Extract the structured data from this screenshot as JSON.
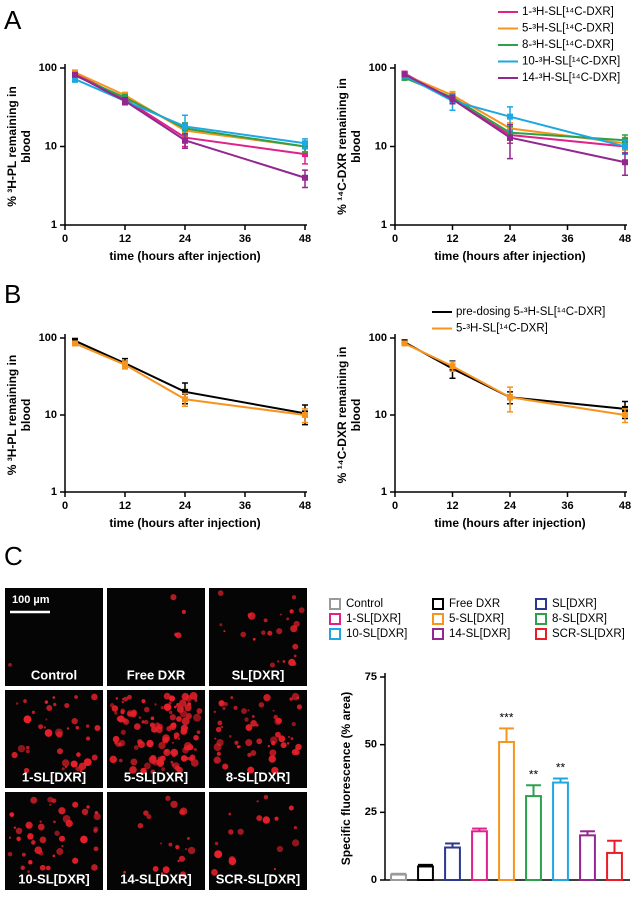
{
  "panel_labels": [
    "A",
    "B",
    "C"
  ],
  "images": {
    "scale_bar": "100 µm",
    "labels": [
      "Control",
      "Free DXR",
      "SL[DXR]",
      "1-SL[DXR]",
      "5-SL[DXR]",
      "8-SL[DXR]",
      "10-SL[DXR]",
      "14-SL[DXR]",
      "SCR-SL[DXR]"
    ]
  },
  "chart_data": [
    {
      "type": "line",
      "log_y": true,
      "legend": false,
      "xlabel": "time (hours after injection)",
      "ylabel": [
        "% ³H-PL remaining in",
        "blood"
      ],
      "x": [
        2,
        12,
        24,
        48
      ],
      "xlim": [
        0,
        48
      ],
      "xticks": [
        0,
        12,
        24,
        36,
        48
      ],
      "ylim": [
        1,
        100
      ],
      "yticks": [
        1,
        10,
        100
      ],
      "series": [
        {
          "name": "1-³H-SL[¹⁴C-DXR]",
          "color": "#e0218a",
          "values": [
            85,
            40,
            13,
            8
          ],
          "errors": [
            5,
            4,
            3,
            2
          ]
        },
        {
          "name": "5-³H-SL[¹⁴C-DXR]",
          "color": "#f7941d",
          "values": [
            88,
            45,
            16,
            10
          ],
          "errors": [
            5,
            4,
            3,
            1.5
          ]
        },
        {
          "name": "8-³H-SL[¹⁴C-DXR]",
          "color": "#2ca04c",
          "values": [
            80,
            42,
            17,
            10
          ],
          "errors": [
            5,
            4,
            3,
            1.5
          ]
        },
        {
          "name": "10-³H-SL[¹⁴C-DXR]",
          "color": "#1ea7e1",
          "values": [
            72,
            38,
            18,
            11
          ],
          "errors": [
            6,
            4,
            7,
            1.5
          ]
        },
        {
          "name": "14-³H-SL[¹⁴C-DXR]",
          "color": "#92278f",
          "values": [
            82,
            38,
            12,
            4
          ],
          "errors": [
            5,
            4,
            2.5,
            1
          ]
        }
      ]
    },
    {
      "type": "line",
      "log_y": true,
      "legend": "top-right",
      "xlabel": "time (hours after injection)",
      "ylabel": [
        "% ¹⁴C-DXR remaining in",
        "blood"
      ],
      "x": [
        2,
        12,
        24,
        48
      ],
      "xlim": [
        0,
        48
      ],
      "xticks": [
        0,
        12,
        24,
        36,
        48
      ],
      "ylim": [
        1,
        100
      ],
      "yticks": [
        1,
        10,
        100
      ],
      "series": [
        {
          "name": "1-³H-SL[¹⁴C-DXR]",
          "color": "#e0218a",
          "values": [
            85,
            40,
            14,
            10
          ],
          "errors": [
            5,
            5,
            3,
            2
          ]
        },
        {
          "name": "5-³H-SL[¹⁴C-DXR]",
          "color": "#f7941d",
          "values": [
            82,
            45,
            17,
            11
          ],
          "errors": [
            5,
            5,
            3,
            2
          ]
        },
        {
          "name": "8-³H-SL[¹⁴C-DXR]",
          "color": "#2ca04c",
          "values": [
            75,
            42,
            15,
            12
          ],
          "errors": [
            5,
            5,
            3,
            2
          ]
        },
        {
          "name": "10-³H-SL[¹⁴C-DXR]",
          "color": "#1ea7e1",
          "values": [
            80,
            38,
            24,
            10
          ],
          "errors": [
            5,
            9,
            8,
            2
          ]
        },
        {
          "name": "14-³H-SL[¹⁴C-DXR]",
          "color": "#92278f",
          "values": [
            83,
            40,
            13,
            6.3
          ],
          "errors": [
            5,
            5,
            6,
            2
          ]
        }
      ]
    },
    {
      "type": "line",
      "log_y": true,
      "legend": false,
      "xlabel": "time (hours after injection)",
      "ylabel": [
        "% ³H-PL remaining in",
        "blood"
      ],
      "x": [
        2,
        12,
        24,
        48
      ],
      "xlim": [
        0,
        48
      ],
      "xticks": [
        0,
        12,
        24,
        36,
        48
      ],
      "ylim": [
        1,
        100
      ],
      "yticks": [
        1,
        10,
        100
      ],
      "series": [
        {
          "name": "pre-dosing 5-³H-SL[¹⁴C-DXR]",
          "color": "#000000",
          "values": [
            92,
            47,
            20,
            10.5
          ],
          "errors": [
            6,
            7,
            6,
            3
          ]
        },
        {
          "name": "5-³H-SL[¹⁴C-DXR]",
          "color": "#f7941d",
          "values": [
            85,
            45,
            16,
            10
          ],
          "errors": [
            5,
            5,
            3,
            2
          ]
        }
      ]
    },
    {
      "type": "line",
      "log_y": true,
      "legend": "top-right",
      "xlabel": "time (hours after injection)",
      "ylabel": [
        "% ¹⁴C-DXR remaining in",
        "blood"
      ],
      "x": [
        2,
        12,
        24,
        48
      ],
      "xlim": [
        0,
        48
      ],
      "xticks": [
        0,
        12,
        24,
        36,
        48
      ],
      "ylim": [
        1,
        100
      ],
      "yticks": [
        1,
        10,
        100
      ],
      "series": [
        {
          "name": "pre-dosing 5-³H-SL[¹⁴C-DXR]",
          "color": "#000000",
          "values": [
            88,
            40,
            17,
            12
          ],
          "errors": [
            6,
            10,
            3,
            3
          ]
        },
        {
          "name": "5-³H-SL[¹⁴C-DXR]",
          "color": "#f7941d",
          "values": [
            85,
            43,
            17,
            10
          ],
          "errors": [
            5,
            6,
            6,
            2
          ]
        }
      ]
    },
    {
      "type": "bar",
      "legend": "top",
      "ylabel": [
        "Specific fluorescence (% area)"
      ],
      "categories": [
        "Control",
        "Free DXR",
        "SL[DXR]",
        "1-SL[DXR]",
        "5-SL[DXR]",
        "8-SL[DXR]",
        "10-SL[DXR]",
        "14-SL[DXR]",
        "SCR-SL[DXR]"
      ],
      "colors": [
        "#9a9a9a",
        "#000000",
        "#2b3990",
        "#e0218a",
        "#f7941d",
        "#2ca04c",
        "#1ea7e1",
        "#92278f",
        "#ed1c24"
      ],
      "values": [
        2,
        5,
        12,
        18,
        51,
        31,
        36,
        16.5,
        10
      ],
      "errors": [
        0.3,
        0.6,
        1.5,
        1,
        5,
        4,
        1.5,
        1.5,
        4.5
      ],
      "annotations": [
        null,
        null,
        null,
        null,
        "***",
        "**",
        "**",
        null,
        null
      ],
      "ylim": [
        0,
        75
      ],
      "yticks": [
        0,
        25,
        50,
        75
      ]
    }
  ]
}
